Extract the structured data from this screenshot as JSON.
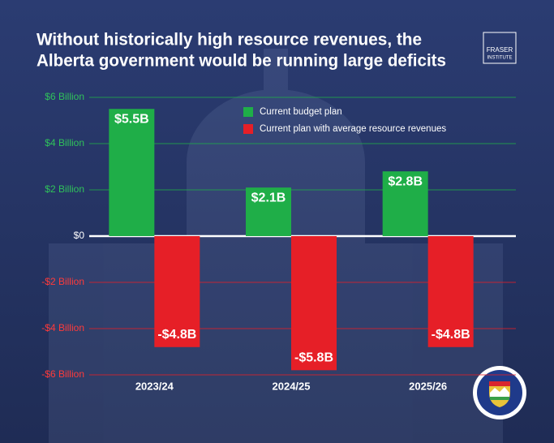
{
  "chart_data": {
    "type": "bar",
    "title": [
      "Without historically high resource revenues, the",
      "Alberta government would be running large deficits"
    ],
    "categories": [
      "2023/24",
      "2024/25",
      "2025/26"
    ],
    "series": [
      {
        "name": "Current budget plan",
        "color": "#1fae48",
        "values": [
          5.5,
          2.1,
          2.8
        ],
        "value_labels": [
          "$5.5B",
          "$2.1B",
          "$2.8B"
        ]
      },
      {
        "name": "Current plan with average resource revenues",
        "color": "#e61f27",
        "values": [
          -4.8,
          -5.8,
          -4.8
        ],
        "value_labels": [
          "-$4.8B",
          "-$5.8B",
          "-$4.8B"
        ]
      }
    ],
    "ylim": [
      -6,
      6
    ],
    "yticks": [
      {
        "value": 6,
        "label": "$6 Billion"
      },
      {
        "value": 4,
        "label": "$4 Billion"
      },
      {
        "value": 2,
        "label": "$2 Billion"
      },
      {
        "value": 0,
        "label": "$0"
      },
      {
        "value": -2,
        "label": "-$2 Billion"
      },
      {
        "value": -4,
        "label": "-$4 Billion"
      },
      {
        "value": -6,
        "label": "-$6 Billion"
      }
    ],
    "grid": true
  },
  "logo": {
    "lines": [
      "FRASER",
      "INSTITUTE"
    ]
  }
}
